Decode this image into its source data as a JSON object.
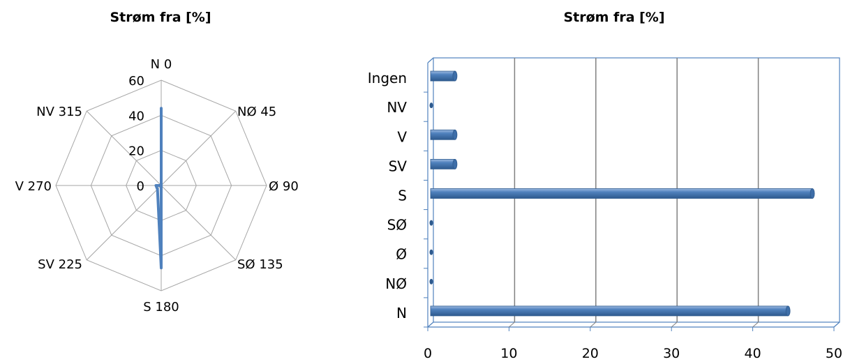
{
  "colors": {
    "series": "#4F81BD",
    "series_dark": "#2E5A8E",
    "grid": "#A6A6A6",
    "bar_frame": "#4F81BD"
  },
  "chart_data": [
    {
      "type": "radar",
      "title": "Strøm fra [%]",
      "axes": [
        "N 0",
        "NØ 45",
        "Ø 90",
        "SØ 135",
        "S 180",
        "SV 225",
        "V 270",
        "NV 315"
      ],
      "ticks": [
        "0",
        "20",
        "40",
        "60"
      ],
      "rlim": [
        0,
        60
      ],
      "grid": true,
      "values": [
        44,
        0,
        0,
        0,
        47,
        3,
        3,
        0
      ]
    },
    {
      "type": "bar",
      "orientation": "horizontal",
      "title": "Strøm fra [%]",
      "categories": [
        "N",
        "NØ",
        "Ø",
        "SØ",
        "S",
        "SV",
        "V",
        "NV",
        "Ingen"
      ],
      "values": [
        44,
        0,
        0,
        0,
        47,
        3,
        3,
        0,
        3
      ],
      "xlim": [
        0,
        50
      ],
      "xticks": [
        "0",
        "10",
        "20",
        "30",
        "40",
        "50"
      ],
      "grid": true
    }
  ]
}
